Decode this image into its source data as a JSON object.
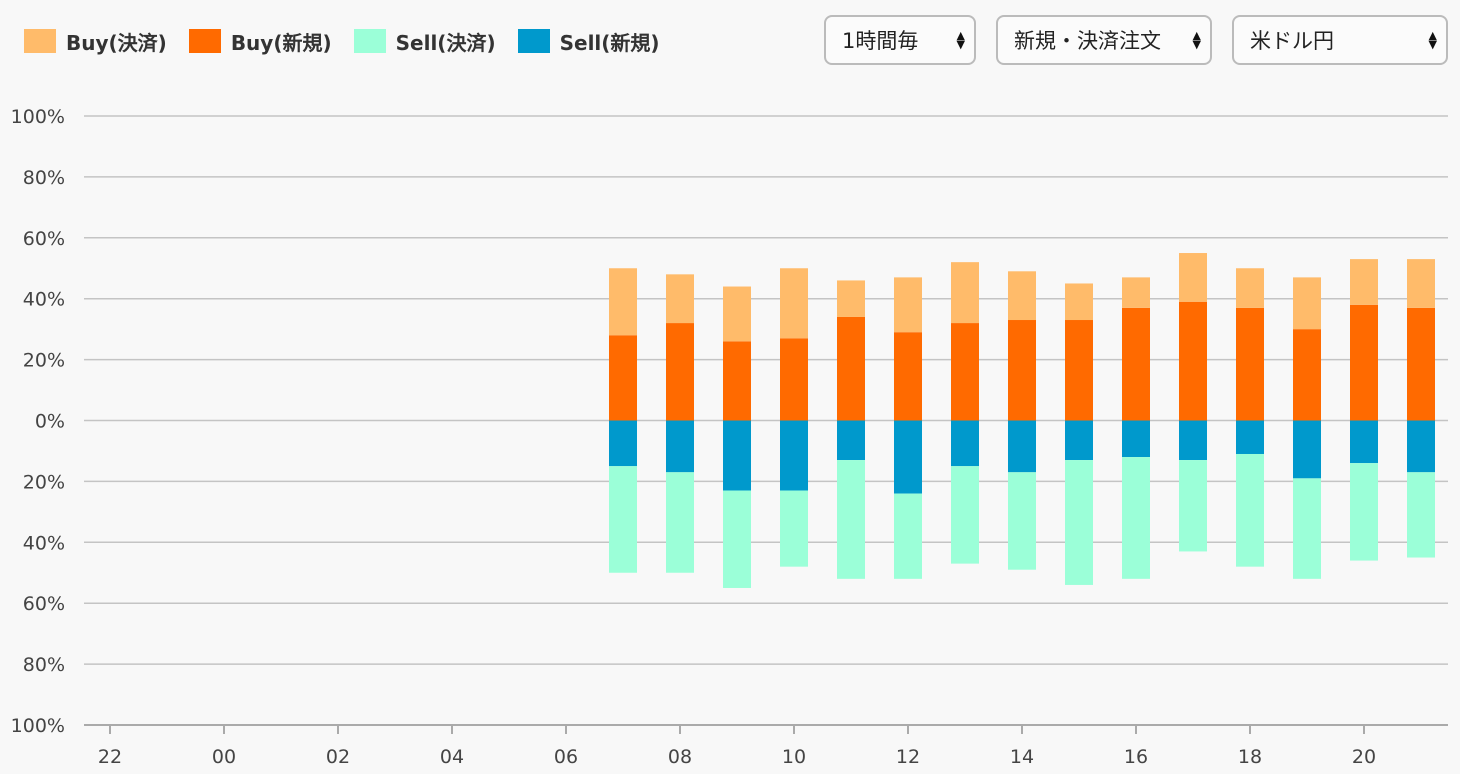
{
  "legend": [
    {
      "label": "Buy(決済)",
      "color": "#FFBB6A"
    },
    {
      "label": "Buy(新規)",
      "color": "#FF6A00"
    },
    {
      "label": "Sell(決済)",
      "color": "#9BFFD8"
    },
    {
      "label": "Sell(新規)",
      "color": "#0099CC"
    }
  ],
  "controls": {
    "interval": {
      "value": "1時間毎",
      "icon": "updown-arrows-icon"
    },
    "order_type": {
      "value": "新規・決済注文",
      "icon": "updown-arrows-icon"
    },
    "currency_pair": {
      "value": "米ドル円",
      "icon": "updown-arrows-icon"
    }
  },
  "chart_data": {
    "type": "bar",
    "stacked": true,
    "diverging": true,
    "title": "",
    "xlabel": "",
    "ylabel": "",
    "ylim": [
      -100,
      100
    ],
    "y_ticks": [
      "100%",
      "80%",
      "60%",
      "40%",
      "20%",
      "0%",
      "20%",
      "40%",
      "60%",
      "80%",
      "100%"
    ],
    "x_tick_labels": [
      "22",
      "00",
      "02",
      "04",
      "06",
      "08",
      "10",
      "12",
      "14",
      "16",
      "18",
      "20"
    ],
    "grid": true,
    "legend_position": "top-left",
    "categories": [
      "22",
      "23",
      "00",
      "01",
      "02",
      "03",
      "04",
      "05",
      "06",
      "07",
      "08",
      "09",
      "10",
      "11",
      "12",
      "13",
      "14",
      "15",
      "16",
      "17",
      "18",
      "19",
      "20",
      "21"
    ],
    "series": [
      {
        "name": "Buy(新規)",
        "color": "#FF6A00",
        "values": [
          null,
          null,
          null,
          null,
          null,
          null,
          null,
          null,
          null,
          28,
          32,
          26,
          27,
          34,
          29,
          32,
          33,
          33,
          37,
          39,
          37,
          30,
          38,
          37
        ]
      },
      {
        "name": "Buy(決済)",
        "color": "#FFBB6A",
        "values": [
          null,
          null,
          null,
          null,
          null,
          null,
          null,
          null,
          null,
          22,
          16,
          18,
          23,
          12,
          18,
          20,
          16,
          12,
          10,
          16,
          13,
          17,
          15,
          16
        ]
      },
      {
        "name": "Sell(新規)",
        "color": "#0099CC",
        "values": [
          null,
          null,
          null,
          null,
          null,
          null,
          null,
          null,
          null,
          15,
          17,
          23,
          23,
          13,
          24,
          15,
          17,
          13,
          12,
          13,
          11,
          19,
          14,
          17
        ]
      },
      {
        "name": "Sell(決済)",
        "color": "#9BFFD8",
        "values": [
          null,
          null,
          null,
          null,
          null,
          null,
          null,
          null,
          null,
          35,
          33,
          32,
          25,
          39,
          28,
          32,
          32,
          41,
          40,
          30,
          37,
          33,
          32,
          28
        ]
      }
    ]
  }
}
